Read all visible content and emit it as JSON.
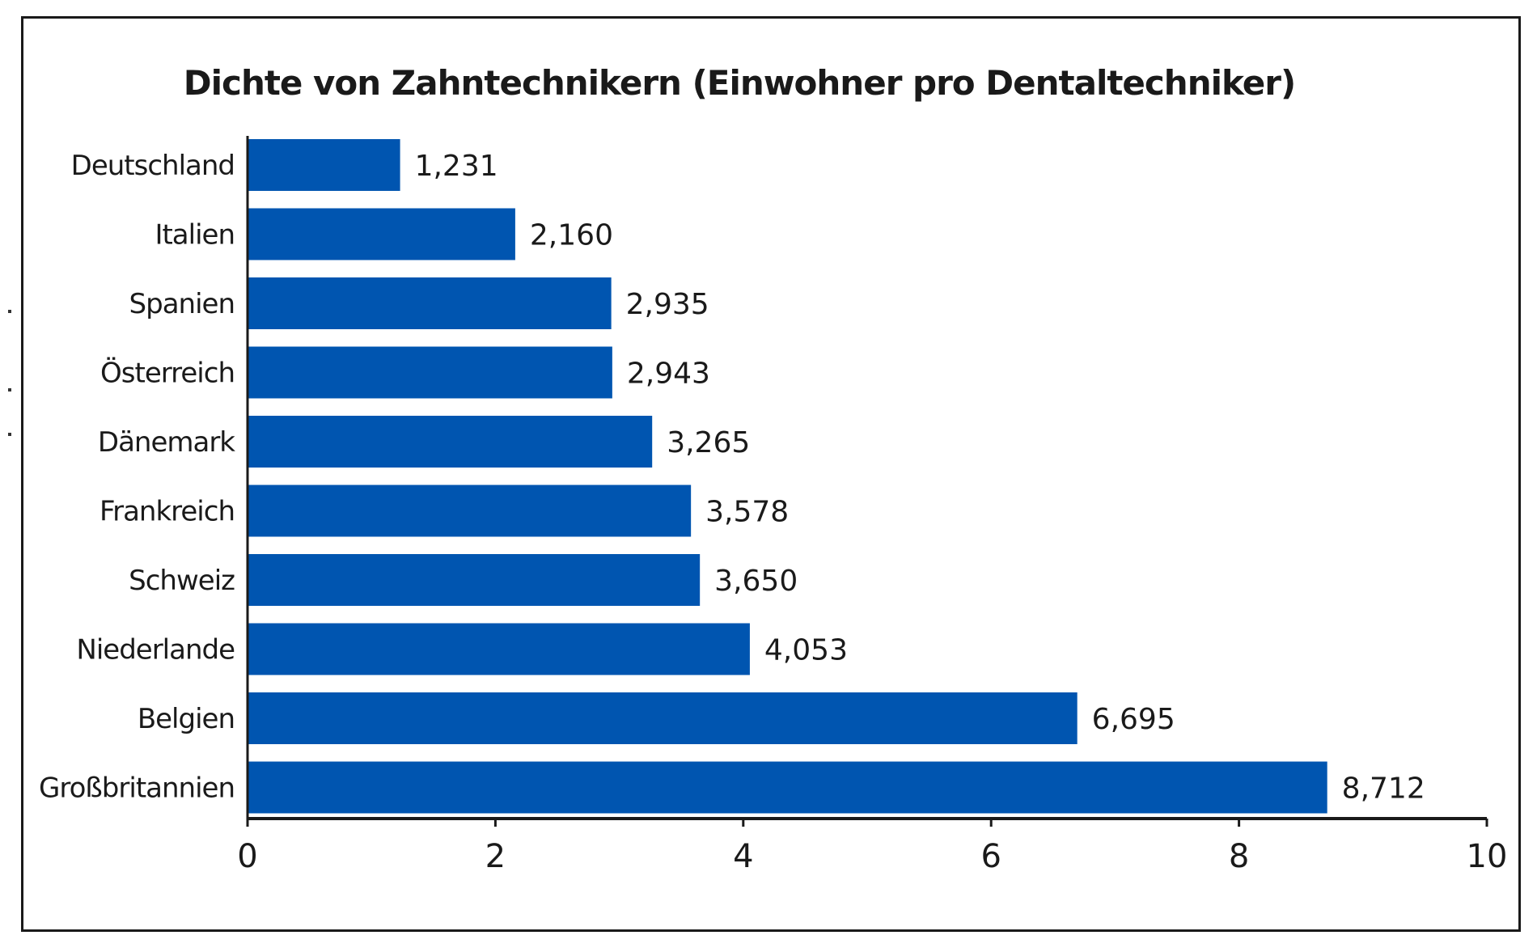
{
  "chart_data": {
    "type": "bar",
    "orientation": "horizontal",
    "title": "Dichte von Zahntechnikern (Einwohner pro Dentaltechniker)",
    "xlabel": "",
    "ylabel": "",
    "categories": [
      "Deutschland",
      "Italien",
      "Spanien",
      "Österreich",
      "Dänemark",
      "Frankreich",
      "Schweiz",
      "Niederlande",
      "Belgien",
      "Großbritannien"
    ],
    "values": [
      1.231,
      2.16,
      2.935,
      2.943,
      3.265,
      3.578,
      3.65,
      4.053,
      6.695,
      8.712
    ],
    "value_labels": [
      "1,231",
      "2,160",
      "2,935",
      "2,943",
      "3,265",
      "3,578",
      "3,650",
      "4,053",
      "6,695",
      "8,712"
    ],
    "xlim": [
      0,
      10
    ],
    "xticks": [
      0,
      2,
      4,
      6,
      8,
      10
    ],
    "xtick_labels": [
      "0",
      "2",
      "4",
      "6",
      "8",
      "10"
    ],
    "grid": false,
    "legend": "none",
    "bar_color": "#0055b0"
  }
}
